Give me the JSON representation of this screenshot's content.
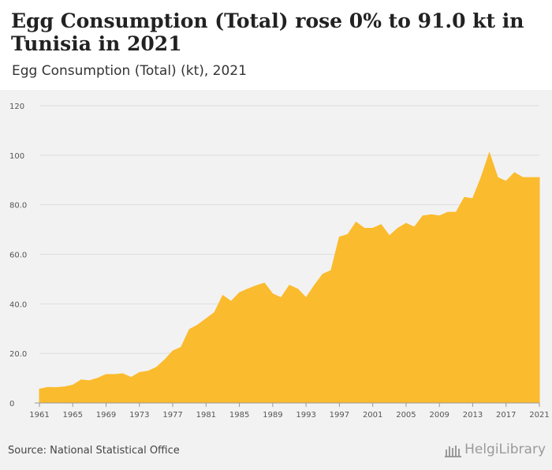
{
  "header": {
    "title": "Egg Consumption (Total) rose 0% to 91.0 kt in Tunisia in 2021",
    "subtitle": "Egg Consumption (Total) (kt), 2021"
  },
  "footer": {
    "source": "Source: National Statistical Office",
    "logo_text": "HelgiLibrary"
  },
  "colors": {
    "area_fill": "#fbbb2e",
    "grid": "#dddddd",
    "background": "#f2f2f2"
  },
  "chart_data": {
    "type": "area",
    "title": "Egg Consumption (Total) (kt), 2021",
    "xlabel": "",
    "ylabel": "",
    "ylim": [
      0,
      120
    ],
    "yticks": [
      0,
      20,
      40,
      60,
      80,
      100,
      120
    ],
    "ytick_labels": [
      "0",
      "20.0",
      "40.0",
      "60.0",
      "80.0",
      "100",
      "120"
    ],
    "xticks": [
      1961,
      1965,
      1969,
      1973,
      1977,
      1981,
      1985,
      1989,
      1993,
      1997,
      2001,
      2005,
      2009,
      2013,
      2017,
      2021
    ],
    "x": [
      1961,
      1962,
      1963,
      1964,
      1965,
      1966,
      1967,
      1968,
      1969,
      1970,
      1971,
      1972,
      1973,
      1974,
      1975,
      1976,
      1977,
      1978,
      1979,
      1980,
      1981,
      1982,
      1983,
      1984,
      1985,
      1986,
      1987,
      1988,
      1989,
      1990,
      1991,
      1992,
      1993,
      1994,
      1995,
      1996,
      1997,
      1998,
      1999,
      2000,
      2001,
      2002,
      2003,
      2004,
      2005,
      2006,
      2007,
      2008,
      2009,
      2010,
      2011,
      2012,
      2013,
      2014,
      2015,
      2016,
      2017,
      2018,
      2019,
      2020,
      2021
    ],
    "series": [
      {
        "name": "Egg Consumption (Total) (kt)",
        "values": [
          5.6,
          6.3,
          6.2,
          6.5,
          7.2,
          9.3,
          9.0,
          10.0,
          11.5,
          11.5,
          11.8,
          10.3,
          12.3,
          12.8,
          14.3,
          17.3,
          21.0,
          22.5,
          29.7,
          31.5,
          34.0,
          36.5,
          43.4,
          41.0,
          44.5,
          46.0,
          47.3,
          48.4,
          44.0,
          42.5,
          47.5,
          46.0,
          42.5,
          47.5,
          52.0,
          53.5,
          67.0,
          68.0,
          73.0,
          70.5,
          70.5,
          72.0,
          67.5,
          70.5,
          72.5,
          71.0,
          75.5,
          76.0,
          75.5,
          77.0,
          77.0,
          83.0,
          82.5,
          91.0,
          101.0,
          91.0,
          89.5,
          93.0,
          91.0,
          91.0,
          91.0
        ]
      }
    ]
  }
}
